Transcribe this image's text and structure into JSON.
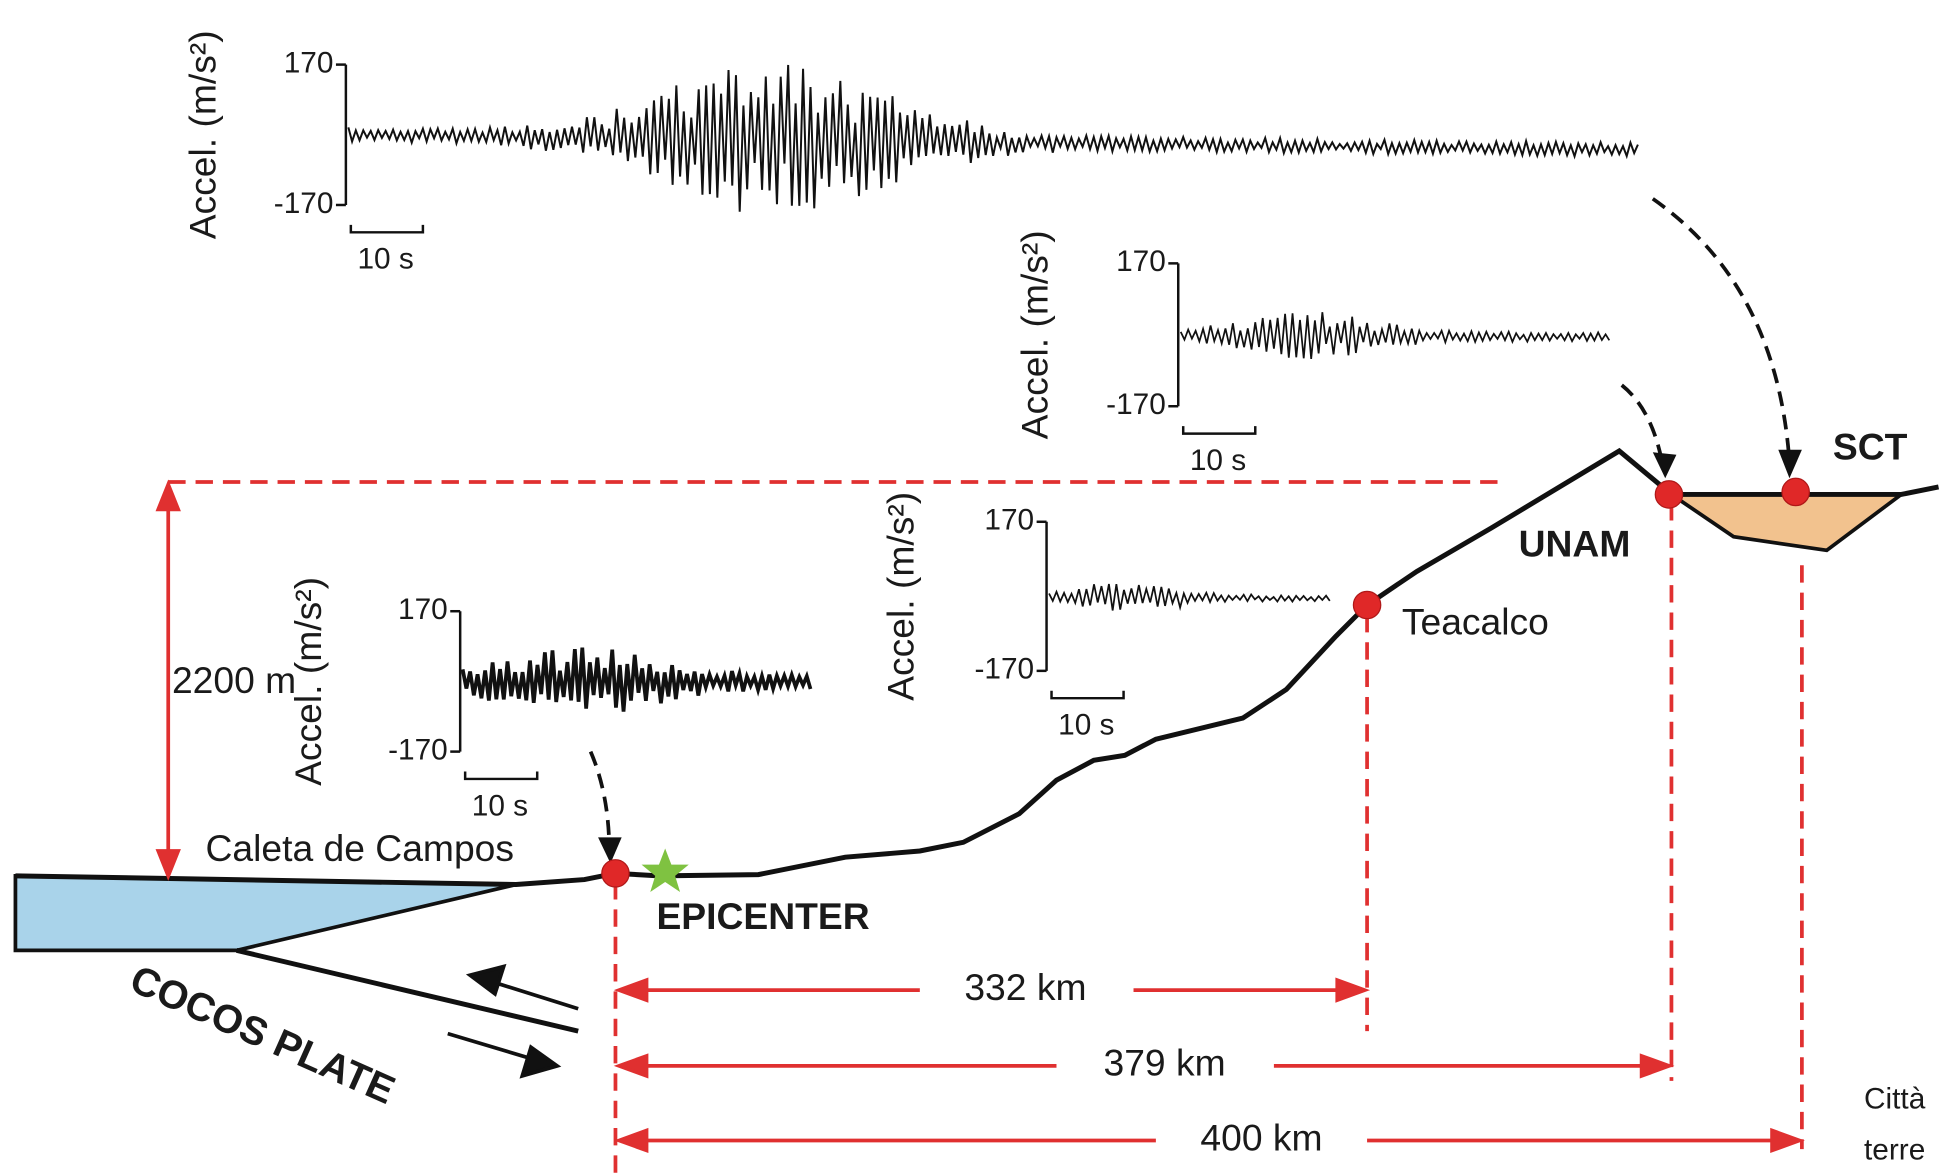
{
  "seismograms": [
    {
      "axis_label": "Accel. (m/s²)",
      "max": 170,
      "min": -170,
      "scale": "10 s"
    },
    {
      "axis_label": "Accel. (m/s²)",
      "max": 170,
      "min": -170,
      "scale": "10 s"
    },
    {
      "axis_label": "Accel. (m/s²)",
      "max": 170,
      "min": -170,
      "scale": "10 s"
    },
    {
      "axis_label": "Accel. (m/s²)",
      "max": 170,
      "min": -170,
      "scale": "10 s"
    }
  ],
  "height_label": "2200 m",
  "stations": [
    "Caleta de Campos",
    "Teacalco",
    "UNAM",
    "SCT"
  ],
  "epicenter": "EPICENTER",
  "plate": "COCOS PLATE",
  "distances": [
    "332 km",
    "379 km",
    "400 km"
  ],
  "caption": [
    "Città",
    "terre"
  ]
}
